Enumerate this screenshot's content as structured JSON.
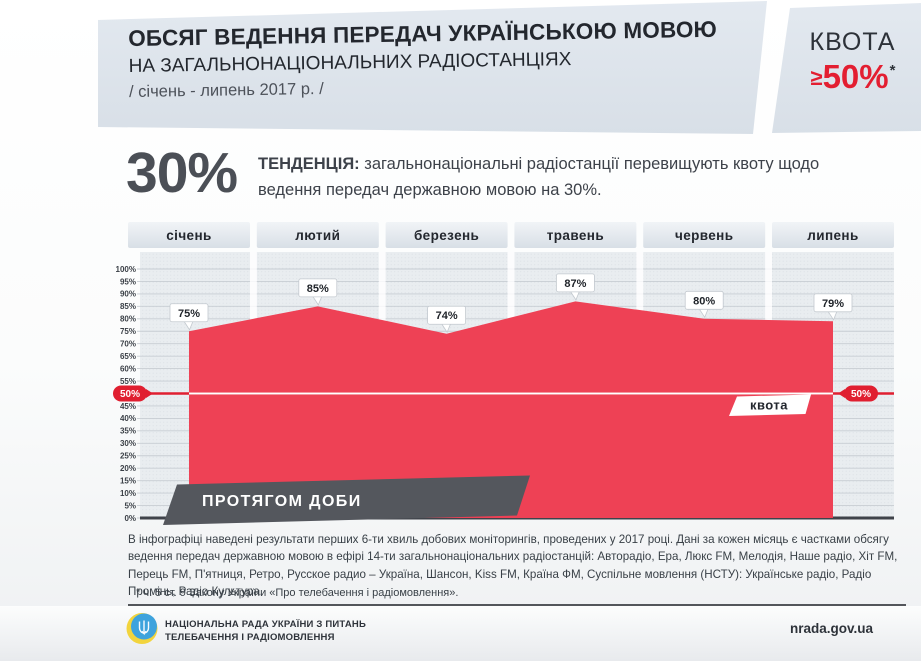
{
  "header": {
    "title_line1": "ОБСЯГ ВЕДЕННЯ ПЕРЕДАЧ УКРАЇНСЬКОЮ МОВОЮ",
    "title_line2": "НА ЗАГАЛЬНОНАЦІОНАЛЬНИХ РАДІОСТАНЦІЯХ",
    "title_line3": "/ січень - липень 2017 р. /",
    "quota_label": "КВОТА",
    "quota_prefix": "≥",
    "quota_value": "50%",
    "quota_note_mark": "*"
  },
  "tendency": {
    "big_value": "30%",
    "label": "ТЕНДЕНЦІЯ:",
    "text": "загальнонаціональні радіостанції перевищують квоту щодо ведення передач державною мовою на 30%."
  },
  "chart_data": {
    "type": "area",
    "title": "Обсяг ведення передач українською мовою, січень - липень 2017",
    "categories": [
      "січень",
      "лютий",
      "березень",
      "травень",
      "червень",
      "липень"
    ],
    "values": [
      75,
      85,
      74,
      87,
      80,
      79
    ],
    "labels": [
      "75%",
      "85%",
      "74%",
      "87%",
      "80%",
      "79%"
    ],
    "unit": "%",
    "ylim": [
      0,
      100
    ],
    "ytick_step": 5,
    "yticks": [
      "0%",
      "5%",
      "10%",
      "15%",
      "20%",
      "25%",
      "30%",
      "35%",
      "40%",
      "45%",
      "50%",
      "55%",
      "60%",
      "65%",
      "70%",
      "75%",
      "80%",
      "85%",
      "90%",
      "95%",
      "100%"
    ],
    "grid": true,
    "legend": "none",
    "quota_line": {
      "value": 50,
      "label": "50%",
      "name": "квота"
    },
    "annotation": "ПРОТЯГОМ ДОБИ",
    "colors": {
      "area": "#ee4155",
      "quota": "#e01f30",
      "banner": "#54575d"
    }
  },
  "footnote": {
    "body": "В інфографіці наведені результати перших 6-ти хвиль добових моніторингів, проведених у 2017 році. Дані за кожен місяць є частками обсягу ведення передач державною мовою в ефірі 14-ти загальнонаціональних радіостанцій: Авторадіо, Ера, Люкс FM, Мелодія, Наше радіо, Хіт FM, Перець FM, П'ятниця, Ретро, Русское радио – Україна, Шансон, Kiss FM, Країна ФМ, Суспільне мовлення (НСТУ): Українське радіо, Радіо Промінь, Радіо Культура.",
    "legal": "* ч. 5 ст. 9 Закону України «Про телебачення і радіомовлення»."
  },
  "footer": {
    "org_line1": "НАЦІОНАЛЬНА РАДА УКРАЇНИ З ПИТАНЬ",
    "org_line2": "ТЕЛЕБАЧЕННЯ І РАДІОМОВЛЕННЯ",
    "site": "nrada.gov.ua"
  }
}
